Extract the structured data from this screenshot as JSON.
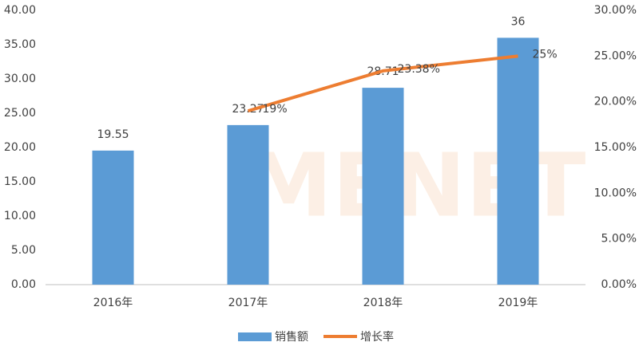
{
  "chart_data": {
    "type": "bar",
    "watermark": "MENET",
    "categories": [
      "2016年",
      "2017年",
      "2018年",
      "2019年"
    ],
    "series": [
      {
        "name": "销售额",
        "type": "bar",
        "color": "#5b9bd5",
        "values": [
          19.55,
          23.27,
          28.71,
          36
        ]
      },
      {
        "name": "增长率",
        "type": "line",
        "axis": "y2",
        "color": "#ed7d31",
        "values": [
          null,
          19,
          23.38,
          25
        ],
        "value_labels": [
          null,
          "19%",
          "23.38%",
          "25%"
        ]
      }
    ],
    "ylim": [
      0,
      40
    ],
    "yticks": [
      {
        "value": 0,
        "label": "0.00"
      },
      {
        "value": 5,
        "label": "5.00"
      },
      {
        "value": 10,
        "label": "10.00"
      },
      {
        "value": 15,
        "label": "15.00"
      },
      {
        "value": 20,
        "label": "20.00"
      },
      {
        "value": 25,
        "label": "25.00"
      },
      {
        "value": 30,
        "label": "30.00"
      },
      {
        "value": 35,
        "label": "35.00"
      },
      {
        "value": 40,
        "label": "40.00"
      }
    ],
    "y2lim": [
      0,
      30
    ],
    "y2ticks": [
      {
        "value": 0,
        "label": "0.00%"
      },
      {
        "value": 5,
        "label": "5.00%"
      },
      {
        "value": 10,
        "label": "10.00%"
      },
      {
        "value": 15,
        "label": "15.00%"
      },
      {
        "value": 20,
        "label": "20.00%"
      },
      {
        "value": 25,
        "label": "25.00%"
      },
      {
        "value": 30,
        "label": "30.00%"
      }
    ],
    "grid": false
  }
}
